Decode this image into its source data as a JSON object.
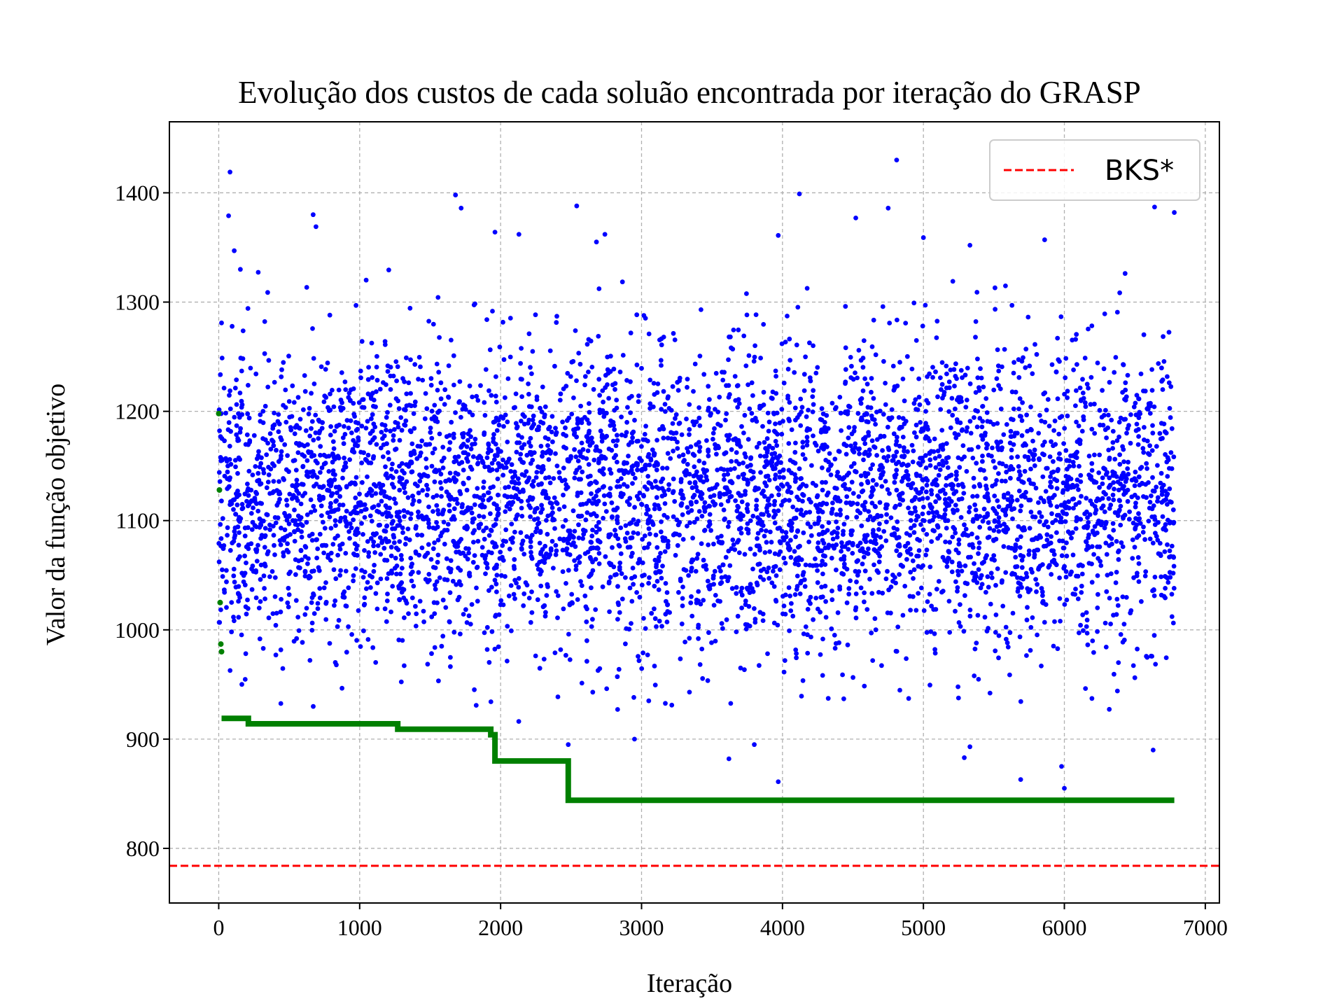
{
  "chart_data": {
    "type": "scatter",
    "title": "Evolução dos custos de cada soluão encontrada por iteração do GRASP",
    "xlabel": "Iteração",
    "ylabel": "Valor da função objetivo",
    "xlim": [
      -350,
      7100
    ],
    "ylim": [
      750,
      1465
    ],
    "xticks": [
      "0",
      "1000",
      "2000",
      "3000",
      "4000",
      "5000",
      "6000",
      "7000"
    ],
    "yticks": [
      "800",
      "900",
      "1000",
      "1100",
      "1200",
      "1300",
      "1400"
    ],
    "grid": true,
    "legend_position": "top-right",
    "legend": [
      {
        "label": "BKS*",
        "style": "dashed",
        "color": "#ff0000"
      }
    ],
    "series": [
      {
        "kind": "scatter",
        "color": "#0000ff",
        "n_points": 6780,
        "distribution": "mostly 1000-1300, centered near 1120",
        "notable_points": [
          [
            80,
            1419
          ],
          [
            70,
            1379
          ],
          [
            110,
            1347
          ],
          [
            670,
            1380
          ],
          [
            690,
            1369
          ],
          [
            1680,
            1398
          ],
          [
            1720,
            1386
          ],
          [
            1960,
            1364
          ],
          [
            2130,
            1362
          ],
          [
            2540,
            1388
          ],
          [
            2680,
            1355
          ],
          [
            2740,
            1362
          ],
          [
            4120,
            1399
          ],
          [
            3970,
            1361
          ],
          [
            4520,
            1377
          ],
          [
            4750,
            1386
          ],
          [
            4810,
            1430
          ],
          [
            5000,
            1359
          ],
          [
            5330,
            1352
          ],
          [
            5860,
            1357
          ],
          [
            6640,
            1387
          ],
          [
            6780,
            1382
          ],
          [
            3620,
            882
          ],
          [
            3800,
            895
          ],
          [
            3970,
            861
          ],
          [
            5290,
            883
          ],
          [
            5330,
            893
          ],
          [
            5690,
            863
          ],
          [
            5980,
            875
          ],
          [
            6000,
            855
          ],
          [
            6630,
            890
          ],
          [
            2480,
            895
          ],
          [
            2950,
            900
          ],
          [
            3340,
            943
          ]
        ]
      },
      {
        "kind": "step",
        "color": "#008000",
        "name": "",
        "points": [
          [
            0,
            1198
          ],
          [
            5,
            1128
          ],
          [
            10,
            1025
          ],
          [
            15,
            987
          ],
          [
            20,
            980
          ],
          [
            20,
            919
          ],
          [
            210,
            919
          ],
          [
            210,
            914
          ],
          [
            1270,
            914
          ],
          [
            1270,
            909
          ],
          [
            1930,
            909
          ],
          [
            1930,
            904
          ],
          [
            1960,
            904
          ],
          [
            1960,
            880
          ],
          [
            2480,
            880
          ],
          [
            2480,
            844
          ],
          [
            6780,
            844
          ]
        ]
      },
      {
        "kind": "hline",
        "name": "BKS*",
        "color": "#ff0000",
        "y": 784
      }
    ]
  },
  "colors": {
    "grid": "#b0b0b0",
    "axes": "#000000",
    "blue": "#0000ff",
    "green": "#008000",
    "red": "#ff0000"
  }
}
